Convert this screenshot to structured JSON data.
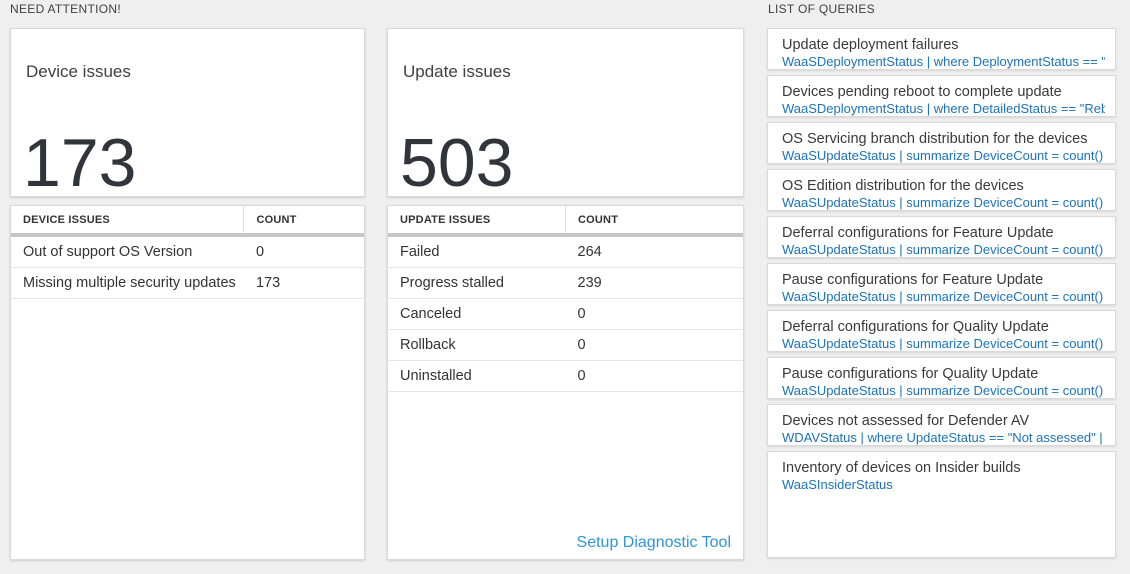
{
  "sections": {
    "need_attention": "NEED ATTENTION!",
    "list_of_queries": "LIST OF QUERIES"
  },
  "stat_cards": [
    {
      "label": "Device issues",
      "value": "173"
    },
    {
      "label": "Update issues",
      "value": "503"
    }
  ],
  "tables": [
    {
      "headers": [
        "DEVICE ISSUES",
        "COUNT"
      ],
      "rows": [
        [
          "Out of support OS Version",
          "0"
        ],
        [
          "Missing multiple security updates",
          "173"
        ]
      ]
    },
    {
      "headers": [
        "UPDATE ISSUES",
        "COUNT"
      ],
      "rows": [
        [
          "Failed",
          "264"
        ],
        [
          "Progress stalled",
          "239"
        ],
        [
          "Canceled",
          "0"
        ],
        [
          "Rollback",
          "0"
        ],
        [
          "Uninstalled",
          "0"
        ]
      ],
      "footer_link": "Setup Diagnostic Tool"
    }
  ],
  "queries": [
    {
      "title": "Update deployment failures",
      "query": "WaaSDeploymentStatus | where DeploymentStatus == \"Failed\" |..."
    },
    {
      "title": "Devices pending reboot to complete update",
      "query": "WaaSDeploymentStatus | where DetailedStatus == \"Reboot pend..."
    },
    {
      "title": "OS Servicing branch distribution for the devices",
      "query": "WaaSUpdateStatus | summarize DeviceCount = count() by OSSer..."
    },
    {
      "title": "OS Edition distribution for the devices",
      "query": "WaaSUpdateStatus | summarize DeviceCount = count() by OSEdit..."
    },
    {
      "title": "Deferral configurations for Feature Update",
      "query": "WaaSUpdateStatus | summarize DeviceCount = count() by Featur..."
    },
    {
      "title": "Pause configurations for Feature Update",
      "query": "WaaSUpdateStatus | summarize DeviceCount = count() by Featur..."
    },
    {
      "title": "Deferral configurations for Quality Update",
      "query": "WaaSUpdateStatus | summarize DeviceCount = count() by Qualit..."
    },
    {
      "title": "Pause configurations for Quality Update",
      "query": "WaaSUpdateStatus | summarize DeviceCount = count() by Qualit..."
    },
    {
      "title": "Devices not assessed for Defender AV",
      "query": "WDAVStatus | where UpdateStatus == \"Not assessed\" | render ta..."
    },
    {
      "title": "Inventory of devices on Insider builds",
      "query": "WaaSInsiderStatus"
    }
  ],
  "colors": {
    "background": "#efefef",
    "card_border": "#d9d9d9",
    "query_link_blue": "#1d73b4",
    "setup_link_blue": "#2e96d6",
    "stat_value_text": "#2f353b",
    "header_divider": "#c6c6c6"
  }
}
